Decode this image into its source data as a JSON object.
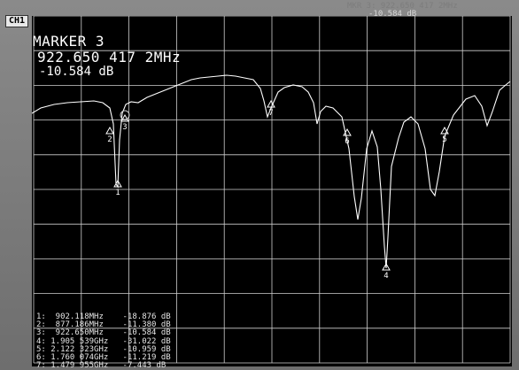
{
  "channel_label": "CH1",
  "top_readout": {
    "line1": "MKR  3:  922.650 417 2MHz",
    "line2": "-10.584 dB"
  },
  "marker": {
    "title": "MARKER 3",
    "frequency": "922.650 417 2MHz",
    "level": "-10.584 dB"
  },
  "marker_table": [
    {
      "id": "1:",
      "freq": " 902.118MHz",
      "level": "-18.876 dB"
    },
    {
      "id": "2:",
      "freq": " 877.186MHz",
      "level": "-11.380 dB"
    },
    {
      "id": "3:",
      "freq": " 922.650MHz",
      "level": "-10.584 dB"
    },
    {
      "id": "4:",
      "freq": "1.905 539GHz",
      "level": "-31.022 dB"
    },
    {
      "id": "5:",
      "freq": "2.122 323GHz",
      "level": "-10.959 dB"
    },
    {
      "id": "6:",
      "freq": "1.760 074GHz",
      "level": "-11.219 dB"
    },
    {
      "id": "7:",
      "freq": "1.479 955GHz",
      "level": "-7.443 dB"
    }
  ],
  "trace_markers": [
    {
      "label": "1"
    },
    {
      "label": "2"
    },
    {
      "label": "3"
    },
    {
      "label": "4"
    },
    {
      "label": "5"
    },
    {
      "label": "6"
    },
    {
      "label": "7"
    }
  ],
  "colors": {
    "screen": "#000000",
    "trace": "#ffffff",
    "grid": "#cfcfcf"
  }
}
